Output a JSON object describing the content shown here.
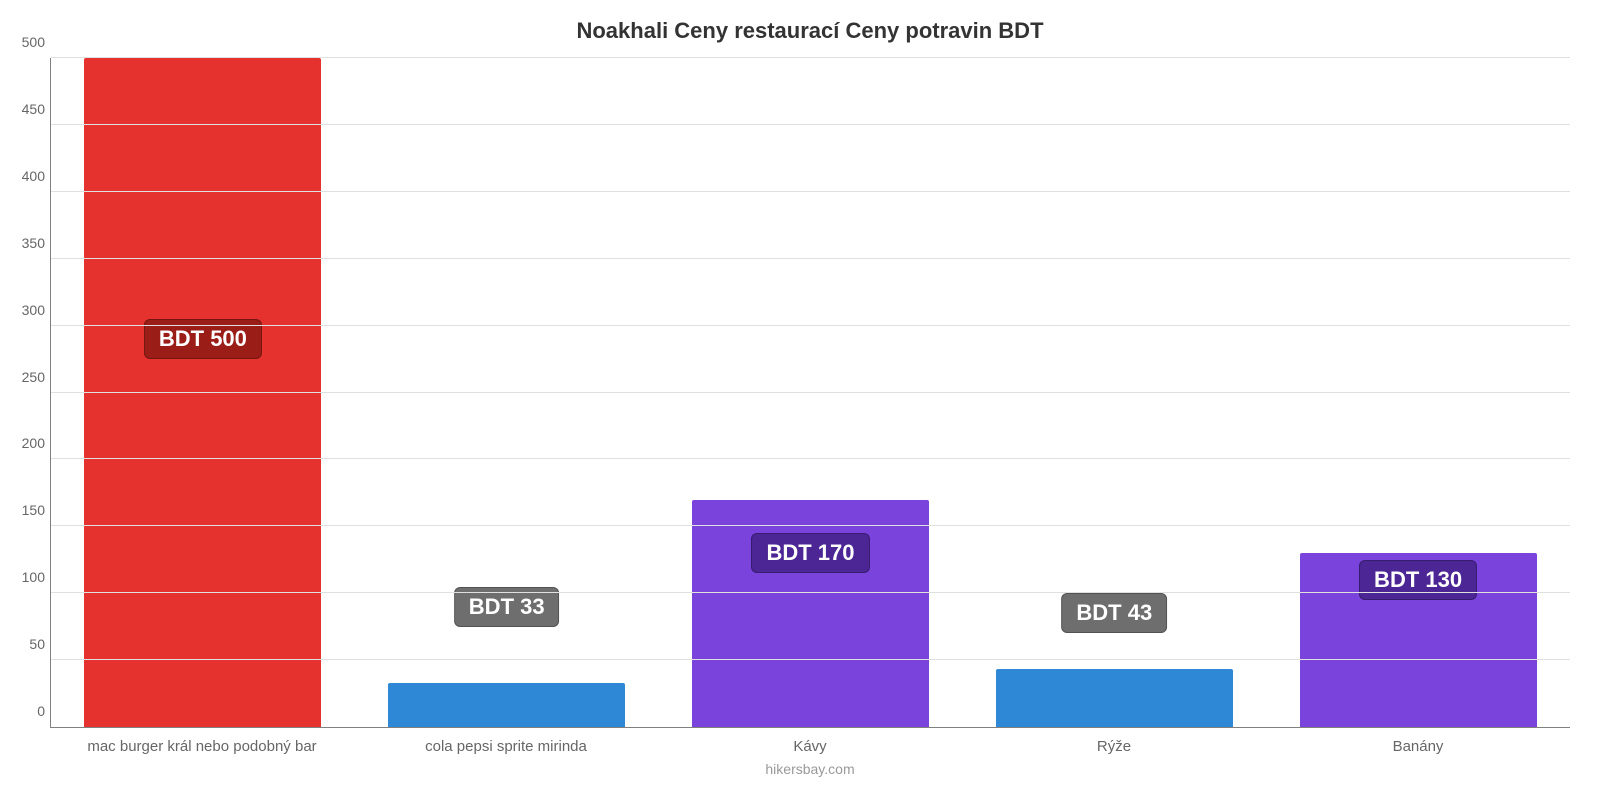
{
  "chart": {
    "type": "bar",
    "title": "Noakhali Ceny restaurací Ceny potravin BDT",
    "title_fontsize": 22,
    "title_color": "#333333",
    "background_color": "#ffffff",
    "grid_color": "#e0e0e0",
    "axis_color": "#808080",
    "label_color": "#666666",
    "label_fontsize": 15,
    "ylim": [
      0,
      500
    ],
    "ytick_step": 50,
    "yticks": [
      0,
      50,
      100,
      150,
      200,
      250,
      300,
      350,
      400,
      450,
      500
    ],
    "bar_width_pct": 78,
    "value_badge": {
      "fontsize": 22,
      "text_color": "#ffffff",
      "border_radius": 6
    },
    "categories": [
      "mac burger král nebo podobný bar",
      "cola pepsi sprite mirinda",
      "Kávy",
      "Rýže",
      "Banány"
    ],
    "values": [
      500,
      33,
      170,
      43,
      130
    ],
    "value_labels": [
      "BDT 500",
      "BDT 33",
      "BDT 170",
      "BDT 43",
      "BDT 130"
    ],
    "bar_colors": [
      "#e6322e",
      "#2f88d6",
      "#7943dc",
      "#2f88d6",
      "#7943dc"
    ],
    "badge_colors": [
      "#9a1d17",
      "#6e6e6e",
      "#4b2694",
      "#6e6e6e",
      "#4b2694"
    ],
    "badge_offsets_pct": [
      55,
      15,
      23,
      14,
      19
    ],
    "source": "hikersbay.com",
    "source_color": "#999999"
  }
}
